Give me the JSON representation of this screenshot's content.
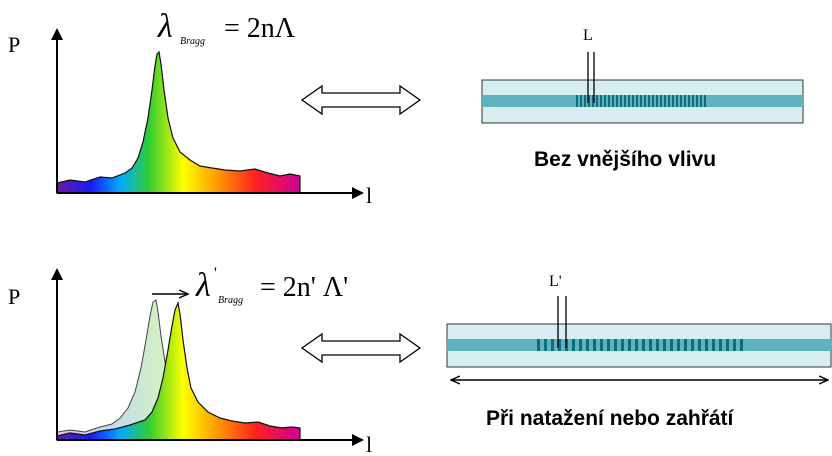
{
  "top": {
    "axis_y_label": "P",
    "axis_x_label": "l",
    "formula": {
      "lambda": "λ",
      "subscript": "Bragg",
      "rhs": "= 2nΛ"
    },
    "grating_label": "L",
    "caption": "Bez vnějšího vlivu"
  },
  "bottom": {
    "axis_y_label": "P",
    "axis_x_label": "l",
    "shift_arrow": "→",
    "formula": {
      "lambda": "λ",
      "prime": "'",
      "subscript": "Bragg",
      "rhs": "= 2n' Λ'"
    },
    "grating_label": "L'",
    "caption": "Při natažení nebo zahřátí"
  },
  "colors": {
    "fiber_cladding": "#d6eef2",
    "fiber_core": "#5fb3bd",
    "grating": "#0a6f7a",
    "outline": "#222222"
  }
}
